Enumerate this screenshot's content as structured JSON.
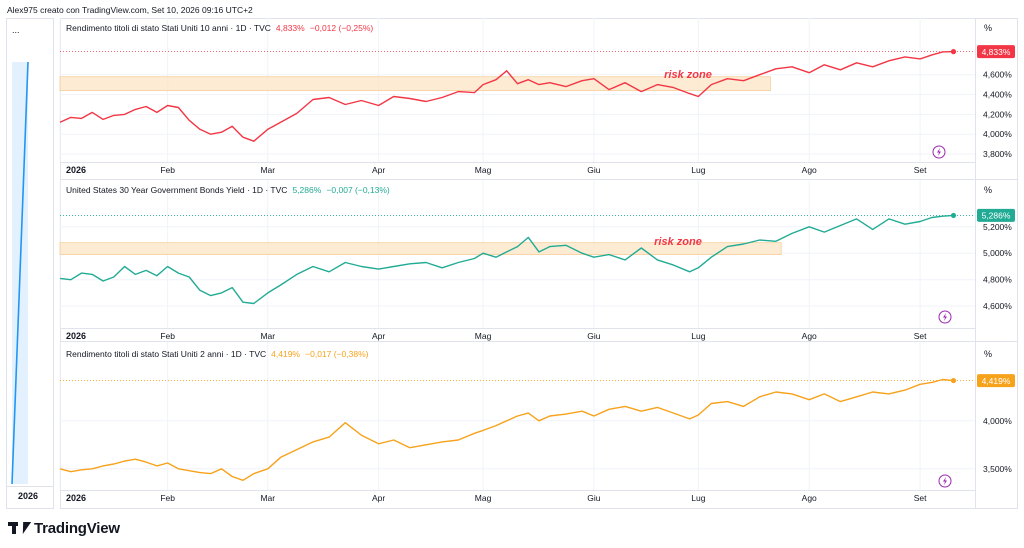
{
  "header": {
    "author_line": "Alex975 creato con TradingView.com, Set 10, 2026 09:16 UTC+2"
  },
  "brand": {
    "logo": "TradingView"
  },
  "colors": {
    "red": "#f23645",
    "teal": "#22ab94",
    "orange": "#f7a21b",
    "blue": "#2196f3",
    "zone_fill": "#fde8cc",
    "zone_stroke": "#f5c88a",
    "grid": "#f0f3fa",
    "axis_text": "#131722"
  },
  "icons": [
    "lightning-icon",
    "tradingview-logo-icon",
    "ellipsis-icon"
  ],
  "mini_pane": {
    "dots": "...",
    "x_label": "2026"
  },
  "chart_data": [
    {
      "type": "line",
      "legend": "Rendimento titoli di stato Stati Uniti 10 anni · 1D · TVC",
      "last_value": "4,833%",
      "change": "−0,012 (−0,25%)",
      "unit": "%",
      "color": "#f23645",
      "y_ticks": [
        "4,600%",
        "4,400%",
        "4,200%",
        "4,000%",
        "3,800%"
      ],
      "y_tick_values": [
        4.6,
        4.4,
        4.2,
        4.0,
        3.8
      ],
      "ylim": [
        3.72,
        4.93
      ],
      "x_ticks": [
        "2026",
        "Feb",
        "Mar",
        "Apr",
        "Mag",
        "Giu",
        "Lug",
        "Ago",
        "Set"
      ],
      "x_tick_positions": [
        0.0,
        1.0,
        1.93,
        2.96,
        3.93,
        4.96,
        5.93,
        6.96,
        7.99
      ],
      "xlim": [
        0.0,
        8.5
      ],
      "zone": {
        "label": "risk zone",
        "x_range": [
          0.0,
          6.6
        ],
        "y_range": [
          4.44,
          4.58
        ]
      },
      "x": [
        0.0,
        0.1,
        0.2,
        0.3,
        0.4,
        0.5,
        0.6,
        0.7,
        0.8,
        0.9,
        1.0,
        1.1,
        1.2,
        1.3,
        1.4,
        1.5,
        1.6,
        1.7,
        1.8,
        1.93,
        2.05,
        2.2,
        2.35,
        2.5,
        2.65,
        2.8,
        2.96,
        3.1,
        3.25,
        3.4,
        3.55,
        3.7,
        3.85,
        3.93,
        4.05,
        4.15,
        4.25,
        4.35,
        4.45,
        4.55,
        4.7,
        4.85,
        4.96,
        5.1,
        5.25,
        5.4,
        5.55,
        5.7,
        5.85,
        5.93,
        6.05,
        6.2,
        6.35,
        6.5,
        6.65,
        6.8,
        6.96,
        7.1,
        7.25,
        7.4,
        7.55,
        7.7,
        7.85,
        7.99,
        8.1,
        8.2,
        8.3
      ],
      "y": [
        4.12,
        4.17,
        4.16,
        4.22,
        4.15,
        4.19,
        4.2,
        4.25,
        4.28,
        4.22,
        4.29,
        4.27,
        4.14,
        4.05,
        4.0,
        4.02,
        4.08,
        3.97,
        3.93,
        4.05,
        4.12,
        4.21,
        4.35,
        4.37,
        4.3,
        4.34,
        4.29,
        4.38,
        4.36,
        4.33,
        4.37,
        4.43,
        4.42,
        4.5,
        4.55,
        4.64,
        4.51,
        4.55,
        4.5,
        4.52,
        4.48,
        4.54,
        4.56,
        4.45,
        4.52,
        4.43,
        4.5,
        4.47,
        4.41,
        4.38,
        4.5,
        4.56,
        4.54,
        4.6,
        4.66,
        4.68,
        4.62,
        4.7,
        4.65,
        4.72,
        4.68,
        4.74,
        4.78,
        4.76,
        4.8,
        4.83,
        4.833
      ]
    },
    {
      "type": "line",
      "legend": "United States 30 Year Government Bonds Yield · 1D · TVC",
      "last_value": "5,286%",
      "change": "−0,007 (−0,13%)",
      "unit": "%",
      "color": "#22ab94",
      "y_ticks": [
        "5,200%",
        "5,000%",
        "4,800%",
        "4,600%"
      ],
      "y_tick_values": [
        5.2,
        5.0,
        4.8,
        4.6
      ],
      "ylim": [
        4.48,
        5.38
      ],
      "x_ticks": [
        "2026",
        "Feb",
        "Mar",
        "Apr",
        "Mag",
        "Giu",
        "Lug",
        "Ago",
        "Set"
      ],
      "x_tick_positions": [
        0.0,
        1.0,
        1.93,
        2.96,
        3.93,
        4.96,
        5.93,
        6.96,
        7.99
      ],
      "xlim": [
        0.0,
        8.5
      ],
      "zone": {
        "label": "risk zone",
        "x_range": [
          0.0,
          6.7
        ],
        "y_range": [
          4.99,
          5.08
        ]
      },
      "x": [
        0.0,
        0.1,
        0.2,
        0.3,
        0.4,
        0.5,
        0.6,
        0.7,
        0.8,
        0.9,
        1.0,
        1.1,
        1.2,
        1.3,
        1.4,
        1.5,
        1.6,
        1.7,
        1.8,
        1.93,
        2.05,
        2.2,
        2.35,
        2.5,
        2.65,
        2.8,
        2.96,
        3.1,
        3.25,
        3.4,
        3.55,
        3.7,
        3.85,
        3.93,
        4.05,
        4.15,
        4.25,
        4.35,
        4.45,
        4.55,
        4.7,
        4.85,
        4.96,
        5.1,
        5.25,
        5.4,
        5.55,
        5.7,
        5.85,
        5.93,
        6.05,
        6.2,
        6.35,
        6.5,
        6.65,
        6.8,
        6.96,
        7.1,
        7.25,
        7.4,
        7.55,
        7.7,
        7.85,
        7.99,
        8.1,
        8.2,
        8.3
      ],
      "y": [
        4.81,
        4.8,
        4.85,
        4.84,
        4.79,
        4.82,
        4.9,
        4.84,
        4.87,
        4.83,
        4.9,
        4.85,
        4.82,
        4.72,
        4.68,
        4.7,
        4.74,
        4.63,
        4.62,
        4.7,
        4.76,
        4.84,
        4.9,
        4.86,
        4.93,
        4.9,
        4.88,
        4.9,
        4.92,
        4.93,
        4.89,
        4.93,
        4.96,
        5.0,
        4.97,
        5.01,
        5.05,
        5.12,
        5.01,
        5.05,
        5.06,
        5.0,
        4.97,
        4.99,
        4.95,
        5.04,
        4.95,
        4.91,
        4.86,
        4.89,
        4.97,
        5.05,
        5.07,
        5.1,
        5.09,
        5.15,
        5.2,
        5.16,
        5.21,
        5.26,
        5.18,
        5.26,
        5.22,
        5.24,
        5.27,
        5.28,
        5.286
      ]
    },
    {
      "type": "line",
      "legend": "Rendimento titoli di stato Stati Uniti 2 anni · 1D · TVC",
      "last_value": "4,419%",
      "change": "−0,017 (−0,38%)",
      "unit": "%",
      "color": "#f7a21b",
      "y_ticks": [
        "4,000%",
        "3,500%"
      ],
      "y_tick_values": [
        4.0,
        3.5
      ],
      "ylim": [
        3.3,
        4.55
      ],
      "x_ticks": [
        "2026",
        "Feb",
        "Mar",
        "Apr",
        "Mag",
        "Giu",
        "Lug",
        "Ago",
        "Set"
      ],
      "x_tick_positions": [
        0.0,
        1.0,
        1.93,
        2.96,
        3.93,
        4.96,
        5.93,
        6.96,
        7.99
      ],
      "xlim": [
        0.0,
        8.5
      ],
      "zone": null,
      "x": [
        0.0,
        0.1,
        0.2,
        0.3,
        0.4,
        0.5,
        0.6,
        0.7,
        0.8,
        0.9,
        1.0,
        1.1,
        1.2,
        1.3,
        1.4,
        1.5,
        1.6,
        1.7,
        1.8,
        1.93,
        2.05,
        2.2,
        2.35,
        2.5,
        2.65,
        2.8,
        2.96,
        3.1,
        3.25,
        3.4,
        3.55,
        3.7,
        3.85,
        3.93,
        4.05,
        4.15,
        4.25,
        4.35,
        4.45,
        4.55,
        4.7,
        4.85,
        4.96,
        5.1,
        5.25,
        5.4,
        5.55,
        5.7,
        5.85,
        5.93,
        6.05,
        6.2,
        6.35,
        6.5,
        6.65,
        6.8,
        6.96,
        7.1,
        7.25,
        7.4,
        7.55,
        7.7,
        7.85,
        7.99,
        8.1,
        8.2,
        8.3
      ],
      "y": [
        3.5,
        3.47,
        3.49,
        3.5,
        3.53,
        3.55,
        3.58,
        3.6,
        3.57,
        3.53,
        3.56,
        3.5,
        3.48,
        3.46,
        3.45,
        3.5,
        3.42,
        3.38,
        3.45,
        3.5,
        3.62,
        3.7,
        3.78,
        3.83,
        3.98,
        3.85,
        3.76,
        3.8,
        3.72,
        3.75,
        3.78,
        3.8,
        3.87,
        3.9,
        3.95,
        4.0,
        4.05,
        4.08,
        4.0,
        4.05,
        4.07,
        4.1,
        4.05,
        4.12,
        4.15,
        4.1,
        4.14,
        4.08,
        4.02,
        4.06,
        4.18,
        4.2,
        4.15,
        4.25,
        4.3,
        4.28,
        4.22,
        4.28,
        4.2,
        4.25,
        4.3,
        4.28,
        4.32,
        4.38,
        4.4,
        4.43,
        4.419
      ]
    }
  ]
}
